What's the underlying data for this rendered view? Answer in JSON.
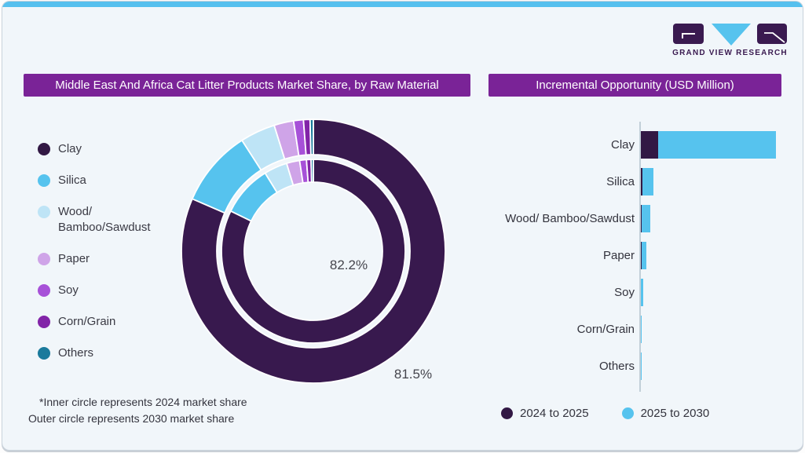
{
  "brand": {
    "logo_text": "GRAND VIEW RESEARCH"
  },
  "colors": {
    "accent_cyan": "#56C0EE",
    "title_bar_purple": "#7A2397",
    "card_background": "#F1F6FA",
    "axis_gray": "#C2CFD8",
    "logo_dark_purple": "#3A1A50",
    "series_2024_to_2025": "#321844",
    "series_2025_to_2030": "#56C3EE"
  },
  "donut_panel": {
    "title": "Middle East And Africa Cat Litter Products Market Share, by Raw Material",
    "inner_share_label": "82.2%",
    "outer_share_label": "81.5%",
    "footnote_line1": "*Inner circle represents 2024 market share",
    "footnote_line2": "Outer circle represents 2030 market share",
    "legend": [
      {
        "label": "Clay",
        "color": "#321844"
      },
      {
        "label": "Silica",
        "color": "#56C3EE"
      },
      {
        "label": "Wood/\nBamboo/Sawdust",
        "color": "#BEE4F6"
      },
      {
        "label": "Paper",
        "color": "#CFA4E8"
      },
      {
        "label": "Soy",
        "color": "#A751D8"
      },
      {
        "label": "Corn/Grain",
        "color": "#8224A8"
      },
      {
        "label": "Others",
        "color": "#1A7A9C"
      }
    ]
  },
  "bar_panel": {
    "title": "Incremental Opportunity (USD Million)",
    "legend": [
      {
        "label": "2024 to 2025",
        "color": "#321844"
      },
      {
        "label": "2025 to 2030",
        "color": "#56C3EE"
      }
    ]
  },
  "chart_data": [
    {
      "type": "pie",
      "subtype": "nested_donut",
      "title": "Middle East And Africa Cat Litter Products Market Share, by Raw Material",
      "categories": [
        "Clay",
        "Silica",
        "Wood/ Bamboo/Sawdust",
        "Paper",
        "Soy",
        "Corn/Grain",
        "Others"
      ],
      "colors": [
        "#38194E",
        "#56C3EE",
        "#BEE4F6",
        "#CFA4E8",
        "#A751D8",
        "#8224A8",
        "#1A7A9C"
      ],
      "series": [
        {
          "name": "2024 market share (inner circle)",
          "values": [
            82.2,
            9.0,
            4.1,
            2.3,
            1.2,
            0.8,
            0.4
          ]
        },
        {
          "name": "2030 market share (outer circle)",
          "values": [
            81.5,
            9.4,
            4.3,
            2.4,
            1.2,
            0.8,
            0.4
          ]
        }
      ],
      "labeled_values": {
        "clay_2024": "82.2%",
        "clay_2030": "81.5%"
      },
      "values_are_estimates_except_clay": true,
      "legend_position": "left"
    },
    {
      "type": "bar",
      "orientation": "horizontal",
      "stacked": true,
      "title": "Incremental Opportunity (USD Million)",
      "categories": [
        "Clay",
        "Silica",
        "Wood/ Bamboo/Sawdust",
        "Paper",
        "Soy",
        "Corn/Grain",
        "Others"
      ],
      "series": [
        {
          "name": "2024 to 2025",
          "color": "#321844",
          "values": [
            13,
            1,
            0.7,
            0.4,
            0.2,
            0.1,
            0.05
          ]
        },
        {
          "name": "2025 to 2030",
          "color": "#56C3EE",
          "values": [
            87,
            8.5,
            6.5,
            3.8,
            1.8,
            0.7,
            0.3
          ]
        }
      ],
      "value_axis_ticks_visible": false,
      "values_are_relative_estimates": true,
      "legend_position": "bottom"
    }
  ]
}
